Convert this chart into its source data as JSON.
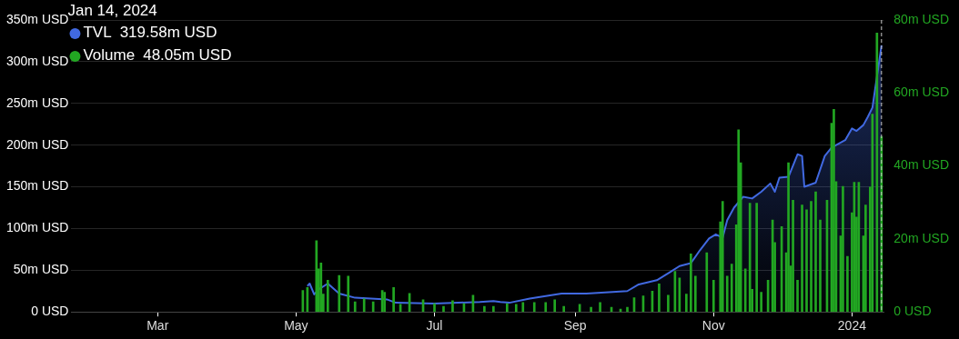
{
  "chart_data": {
    "type": "area",
    "xlim": [
      "2023-01-22",
      "2024-01-15"
    ],
    "xticks": [
      {
        "value": "2023-03-01",
        "label": "Mar"
      },
      {
        "value": "2023-05-01",
        "label": "May"
      },
      {
        "value": "2023-07-01",
        "label": "Jul"
      },
      {
        "value": "2023-09-01",
        "label": "Sep"
      },
      {
        "value": "2023-11-01",
        "label": "Nov"
      },
      {
        "value": "2024-01-01",
        "label": "2024"
      }
    ],
    "ylim": [
      0,
      350
    ],
    "yticks": [
      {
        "value": 0,
        "label": "0 USD"
      },
      {
        "value": 50,
        "label": "50m USD"
      },
      {
        "value": 100,
        "label": "100m USD"
      },
      {
        "value": 150,
        "label": "150m USD"
      },
      {
        "value": 200,
        "label": "200m USD"
      },
      {
        "value": 250,
        "label": "250m USD"
      },
      {
        "value": 300,
        "label": "300m USD"
      },
      {
        "value": 350,
        "label": "350m USD"
      }
    ],
    "y2lim": [
      0,
      80
    ],
    "y2ticks": [
      {
        "value": 0,
        "label": "0 USD"
      },
      {
        "value": 20,
        "label": "20m USD"
      },
      {
        "value": 40,
        "label": "40m USD"
      },
      {
        "value": 60,
        "label": "60m USD"
      },
      {
        "value": 80,
        "label": "80m USD"
      }
    ],
    "grid": "y",
    "legend": "top left",
    "marker": "none",
    "annotations": [
      "Jan 14, 2024",
      "319.58m USD",
      "48.05m USD"
    ],
    "ref_lines": [
      {
        "axis": "x",
        "value": "2024-01-14",
        "line_style": "dashed",
        "color": "#cccccc"
      }
    ],
    "series": [
      {
        "name": "TVL",
        "color": "#4169e1",
        "x": [
          "2023-05-06",
          "2023-05-07",
          "2023-05-09",
          "2023-05-11",
          "2023-05-15",
          "2023-05-20",
          "2023-05-27",
          "2023-06-10",
          "2023-06-14",
          "2023-07-01",
          "2023-07-21",
          "2023-07-27",
          "2023-07-30",
          "2023-08-03",
          "2023-08-12",
          "2023-08-26",
          "2023-09-06",
          "2023-09-24",
          "2023-09-29",
          "2023-10-07",
          "2023-10-13",
          "2023-10-17",
          "2023-10-22",
          "2023-10-26",
          "2023-10-30",
          "2023-11-02",
          "2023-11-05",
          "2023-11-07",
          "2023-11-10",
          "2023-11-14",
          "2023-11-18",
          "2023-11-22",
          "2023-11-26",
          "2023-11-28",
          "2023-11-30",
          "2023-12-04",
          "2023-12-08",
          "2023-12-10",
          "2023-12-11",
          "2023-12-16",
          "2023-12-20",
          "2023-12-23",
          "2023-12-29",
          "2024-01-01",
          "2024-01-03",
          "2024-01-06",
          "2024-01-08",
          "2024-01-10",
          "2024-01-14"
        ],
        "values": [
          31,
          34,
          21,
          27,
          34,
          22,
          17,
          15,
          11,
          10,
          12,
          13,
          12,
          11,
          16,
          22,
          22,
          25,
          33,
          38,
          48,
          55,
          58.5,
          74,
          88,
          93,
          89,
          110,
          125,
          138,
          136,
          144,
          154,
          144,
          161,
          162,
          189,
          187,
          150,
          155,
          187,
          197,
          206,
          220,
          217,
          224,
          234,
          245,
          319.58
        ]
      },
      {
        "name": "Volume",
        "color": "#22a722",
        "type": "bar",
        "axis": "y2",
        "x": [
          "2023-05-04",
          "2023-05-06",
          "2023-05-10",
          "2023-05-11",
          "2023-05-12",
          "2023-05-13",
          "2023-05-15",
          "2023-05-20",
          "2023-05-24",
          "2023-05-27",
          "2023-05-31",
          "2023-06-04",
          "2023-06-08",
          "2023-06-09",
          "2023-06-13",
          "2023-06-16",
          "2023-06-20",
          "2023-06-26",
          "2023-07-01",
          "2023-07-05",
          "2023-07-09",
          "2023-07-14",
          "2023-07-18",
          "2023-07-23",
          "2023-07-27",
          "2023-08-02",
          "2023-08-06",
          "2023-08-09",
          "2023-08-14",
          "2023-08-19",
          "2023-08-23",
          "2023-08-27",
          "2023-09-03",
          "2023-09-08",
          "2023-09-12",
          "2023-09-17",
          "2023-09-21",
          "2023-09-24",
          "2023-09-27",
          "2023-10-01",
          "2023-10-05",
          "2023-10-08",
          "2023-10-12",
          "2023-10-15",
          "2023-10-17",
          "2023-10-20",
          "2023-10-22",
          "2023-10-24",
          "2023-10-29",
          "2023-11-01",
          "2023-11-04",
          "2023-11-05",
          "2023-11-07",
          "2023-11-09",
          "2023-11-11",
          "2023-11-12",
          "2023-11-13",
          "2023-11-15",
          "2023-11-17",
          "2023-11-18",
          "2023-11-20",
          "2023-11-22",
          "2023-11-25",
          "2023-11-27",
          "2023-11-28",
          "2023-12-01",
          "2023-12-03",
          "2023-12-04",
          "2023-12-05",
          "2023-12-06",
          "2023-12-08",
          "2023-12-10",
          "2023-12-12",
          "2023-12-14",
          "2023-12-16",
          "2023-12-18",
          "2023-12-21",
          "2023-12-23",
          "2023-12-24",
          "2023-12-25",
          "2023-12-27",
          "2023-12-28",
          "2023-12-30",
          "2024-01-01",
          "2024-01-02",
          "2024-01-03",
          "2024-01-04",
          "2024-01-06",
          "2024-01-07",
          "2024-01-09",
          "2024-01-10",
          "2024-01-12",
          "2024-01-14"
        ],
        "values": [
          5.9,
          6.7,
          19.5,
          11.8,
          13.4,
          4.9,
          8.7,
          10,
          9.8,
          2.8,
          3.6,
          2.8,
          5.9,
          5.4,
          6.7,
          2.1,
          5.1,
          3.3,
          2.3,
          1.5,
          3.1,
          2.3,
          4.6,
          1.5,
          1.5,
          2.3,
          2.1,
          2.6,
          2.6,
          2.6,
          3.3,
          1.5,
          2.1,
          1.3,
          2.6,
          1.3,
          0.8,
          1.3,
          3.9,
          4.4,
          5.7,
          7.7,
          4.6,
          11.1,
          9.3,
          4.9,
          15.9,
          9.8,
          16.2,
          8.7,
          24.7,
          30.3,
          9.8,
          13.1,
          23.9,
          49.9,
          40.9,
          11.8,
          29.8,
          6.2,
          29.8,
          5.4,
          8.7,
          25.2,
          19,
          23.4,
          16.2,
          40.9,
          12.6,
          30.6,
          8.7,
          29.3,
          28,
          30.3,
          32.9,
          25.2,
          30.6,
          51.7,
          55.5,
          35.7,
          20.8,
          34.4,
          15.2,
          27.2,
          35.5,
          26,
          35.5,
          20.8,
          29.3,
          34.2,
          54.2,
          76.4,
          48.05
        ]
      }
    ]
  }
}
